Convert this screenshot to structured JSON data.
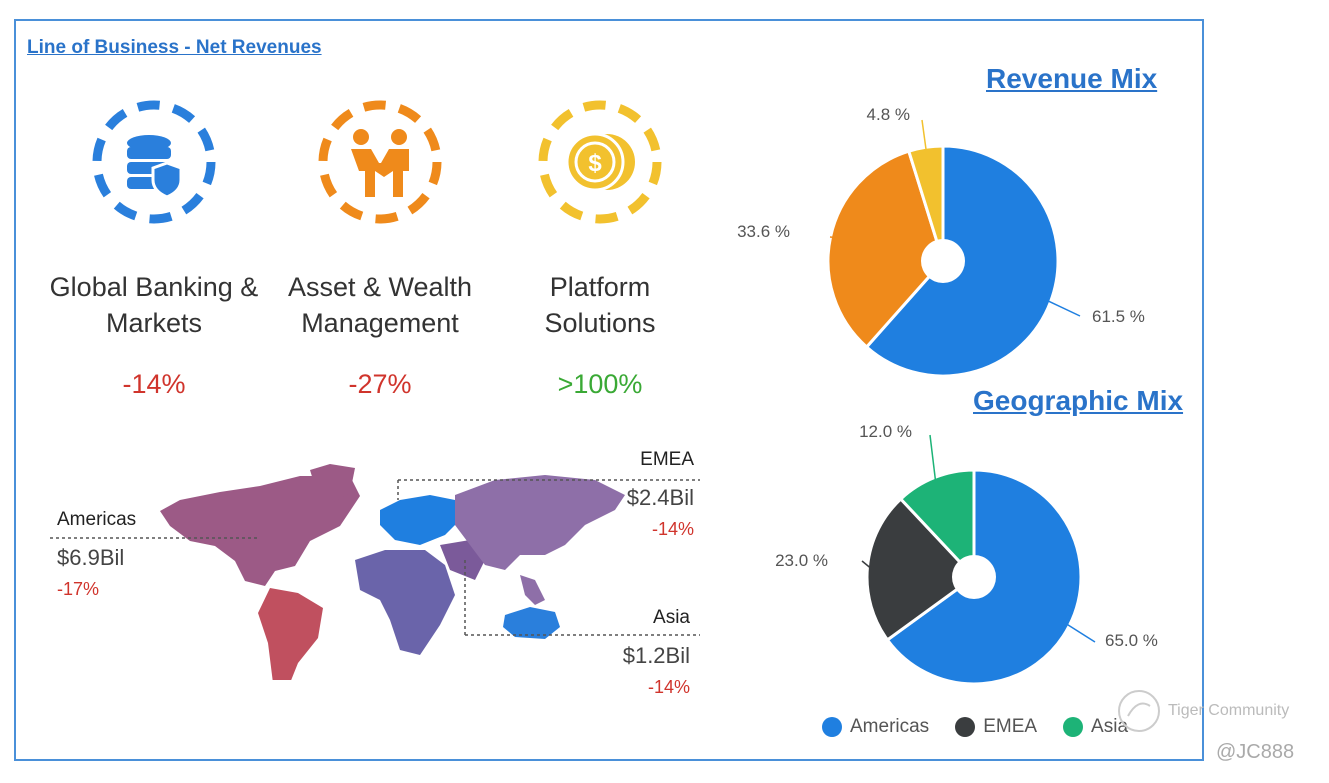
{
  "header": "Line of Business - Net Revenues",
  "lines_of_business": [
    {
      "name1": "Global Banking &",
      "name2": "Markets",
      "change": "-14%"
    },
    {
      "name1": "Asset & Wealth",
      "name2": "Management",
      "change": "-27%"
    },
    {
      "name1": "Platform",
      "name2": "Solutions",
      "change": ">100%"
    }
  ],
  "regions": {
    "americas": {
      "name": "Americas",
      "value": "$6.9Bil",
      "change": "-17%"
    },
    "emea": {
      "name": "EMEA",
      "value": "$2.4Bil",
      "change": "-14%"
    },
    "asia": {
      "name": "Asia",
      "value": "$1.2Bil",
      "change": "-14%"
    }
  },
  "colors": {
    "americas": "#1f7fe0",
    "emea": "#3a3d3f",
    "asia": "#1db377",
    "orange": "#ef8a1b",
    "yellow": "#f2c12e",
    "negative": "#d0342c",
    "positive": "#3aa935",
    "blue_icon": "#2a7fdc"
  },
  "chart_data": [
    {
      "type": "pie",
      "title": "Revenue Mix",
      "categories": [
        "Global Banking & Markets",
        "Asset & Wealth Management",
        "Platform Solutions"
      ],
      "values": [
        61.5,
        33.6,
        4.8
      ],
      "labels": [
        "61.5 %",
        "33.6 %",
        "4.8 %"
      ]
    },
    {
      "type": "pie",
      "title": "Geographic Mix",
      "categories": [
        "Americas",
        "EMEA",
        "Asia"
      ],
      "values": [
        65.0,
        23.0,
        12.0
      ],
      "labels": [
        "65.0 %",
        "23.0 %",
        "12.0 %"
      ],
      "legend": [
        "Americas",
        "EMEA",
        "Asia"
      ],
      "legend_position": "bottom"
    }
  ],
  "watermark": {
    "brand": "Tiger Community",
    "handle": "@JC888"
  }
}
